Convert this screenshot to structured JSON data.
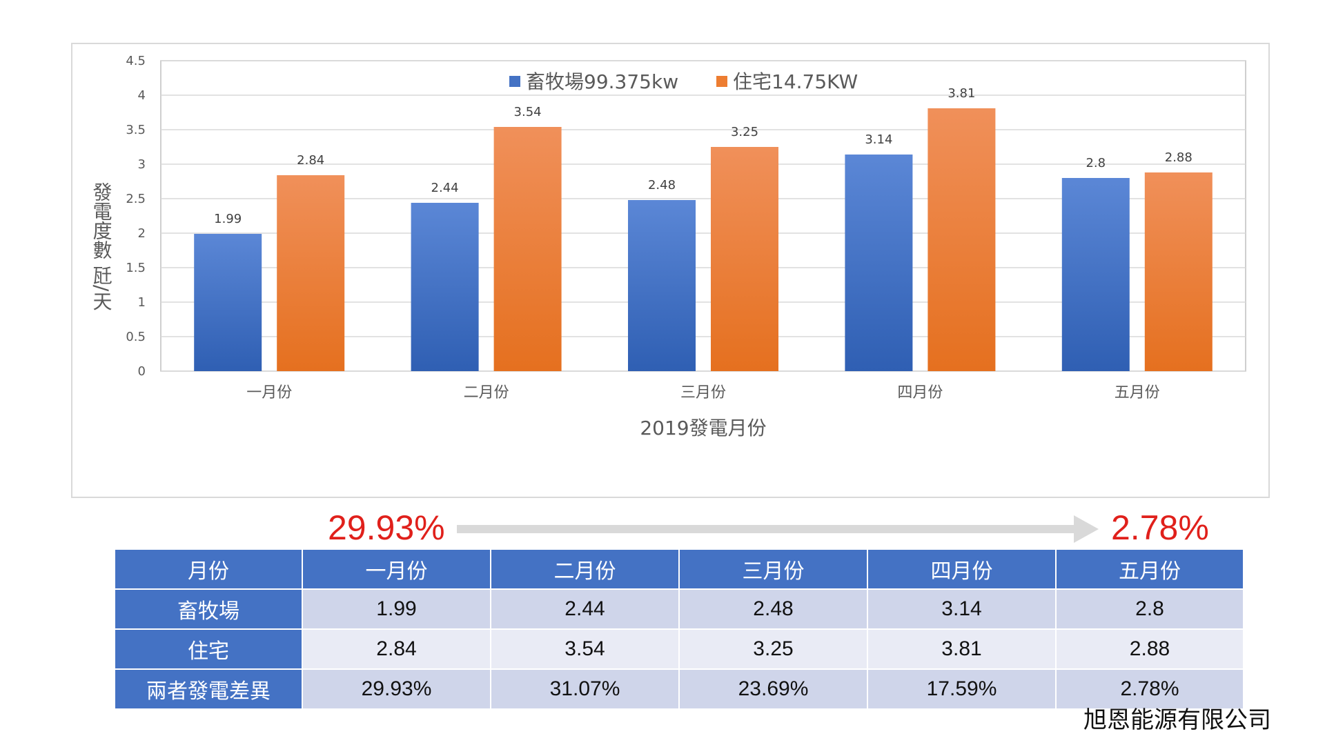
{
  "chart_data": {
    "type": "bar",
    "categories": [
      "一月份",
      "二月份",
      "三月份",
      "四月份",
      "五月份"
    ],
    "series": [
      {
        "name": "畜牧場99.375kw",
        "values": [
          1.99,
          2.44,
          2.48,
          3.14,
          2.8
        ],
        "color": "#4472c4"
      },
      {
        "name": "住宅14.75KW",
        "values": [
          2.84,
          3.54,
          3.25,
          3.81,
          2.88
        ],
        "color": "#ed7d31"
      }
    ],
    "data_labels": [
      [
        "1.99",
        "2.44",
        "2.48",
        "3.14",
        "2.8"
      ],
      [
        "2.84",
        "3.54",
        "3.25",
        "3.81",
        "2.88"
      ]
    ],
    "yticks": [
      "0",
      "0.5",
      "1",
      "1.5",
      "2",
      "2.5",
      "3",
      "3.5",
      "4",
      "4.5"
    ],
    "ylim": [
      0,
      4.5
    ],
    "xlabel": "2019發電月份",
    "ylabel": "發電度數 瓩/天",
    "legend_position": "top-center",
    "grid": true
  },
  "change": {
    "start": "29.93%",
    "end": "2.78%"
  },
  "table": {
    "header": [
      "月份",
      "一月份",
      "二月份",
      "三月份",
      "四月份",
      "五月份"
    ],
    "rows": [
      {
        "label": "畜牧場",
        "values": [
          "1.99",
          "2.44",
          "2.48",
          "3.14",
          "2.8"
        ]
      },
      {
        "label": "住宅",
        "values": [
          "2.84",
          "3.54",
          "3.25",
          "3.81",
          "2.88"
        ]
      },
      {
        "label": "兩者發電差異",
        "values": [
          "29.93%",
          "31.07%",
          "23.69%",
          "17.59%",
          "2.78%"
        ]
      }
    ]
  },
  "company": "旭恩能源有限公司"
}
